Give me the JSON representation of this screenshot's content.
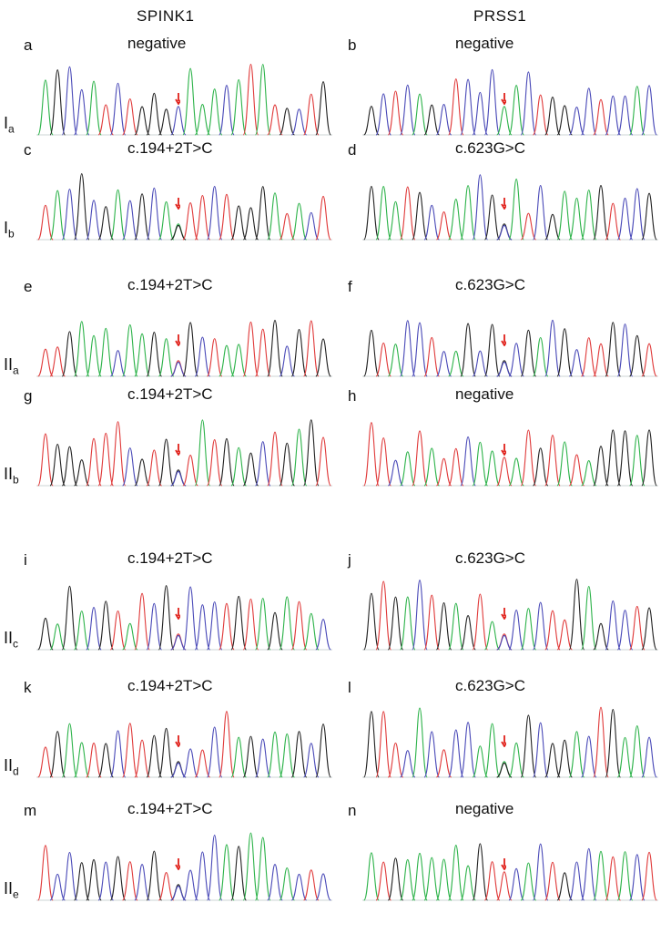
{
  "columns": [
    {
      "key": "spink1",
      "label": "SPINK1"
    },
    {
      "key": "prss1",
      "label": "PRSS1"
    }
  ],
  "rows": [
    {
      "label_main": "I",
      "label_sub": "a",
      "panels": [
        {
          "letter": "a",
          "mutation": "negative",
          "mutant_peak": 11,
          "variant": "normal",
          "seed": 3
        },
        {
          "letter": "b",
          "mutation": "negative",
          "mutant_peak": 11,
          "variant": "normal",
          "seed": 7
        }
      ]
    },
    {
      "label_main": "I",
      "label_sub": "b",
      "panels": [
        {
          "letter": "c",
          "mutation": "c.194+2T>C",
          "mutant_peak": 11,
          "variant": "hetero",
          "seed": 11
        },
        {
          "letter": "d",
          "mutation": "c.623G>C",
          "mutant_peak": 11,
          "variant": "hetero",
          "seed": 13
        }
      ]
    },
    {
      "label_main": "II",
      "label_sub": "a",
      "panels": [
        {
          "letter": "e",
          "mutation": "c.194+2T>C",
          "mutant_peak": 11,
          "variant": "hetero",
          "seed": 17
        },
        {
          "letter": "f",
          "mutation": "c.623G>C",
          "mutant_peak": 11,
          "variant": "hetero",
          "seed": 19
        }
      ]
    },
    {
      "label_main": "II",
      "label_sub": "b",
      "panels": [
        {
          "letter": "g",
          "mutation": "c.194+2T>C",
          "mutant_peak": 11,
          "variant": "hetero",
          "seed": 23
        },
        {
          "letter": "h",
          "mutation": "negative",
          "mutant_peak": 11,
          "variant": "normal",
          "seed": 29
        }
      ]
    },
    {
      "label_main": "II",
      "label_sub": "c",
      "panels": [
        {
          "letter": "i",
          "mutation": "c.194+2T>C",
          "mutant_peak": 11,
          "variant": "hetero",
          "seed": 31
        },
        {
          "letter": "j",
          "mutation": "c.623G>C",
          "mutant_peak": 11,
          "variant": "hetero",
          "seed": 37
        }
      ]
    },
    {
      "label_main": "II",
      "label_sub": "d",
      "panels": [
        {
          "letter": "k",
          "mutation": "c.194+2T>C",
          "mutant_peak": 11,
          "variant": "hetero",
          "seed": 41
        },
        {
          "letter": "l",
          "mutation": "c.623G>C",
          "mutant_peak": 11,
          "variant": "hetero",
          "seed": 43
        }
      ]
    },
    {
      "label_main": "II",
      "label_sub": "e",
      "panels": [
        {
          "letter": "m",
          "mutation": "c.194+2T>C",
          "mutant_peak": 11,
          "variant": "hetero",
          "seed": 47
        },
        {
          "letter": "n",
          "mutation": "negative",
          "mutant_peak": 11,
          "variant": "normal",
          "seed": 53
        }
      ]
    }
  ],
  "colors": {
    "A": "#2db34a",
    "C": "#4a4ab8",
    "G": "#222222",
    "T": "#e03a3a",
    "arrow": "#e0201a"
  }
}
